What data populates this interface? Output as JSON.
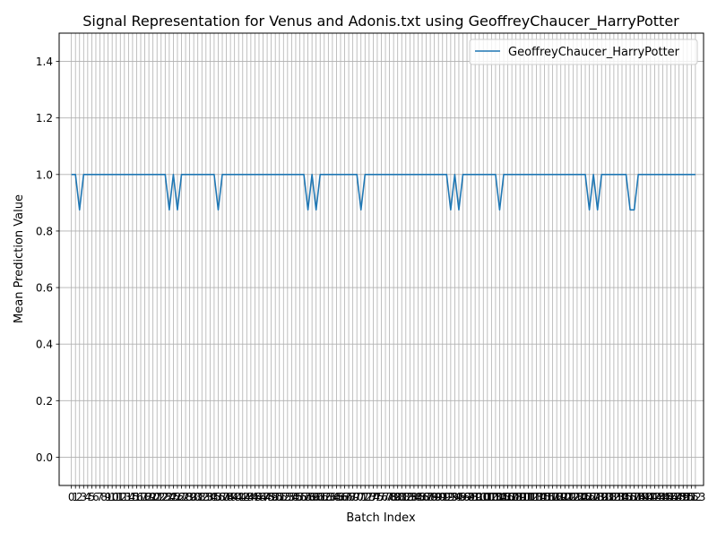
{
  "chart_data": {
    "type": "line",
    "title": "Signal Representation for Venus and Adonis.txt using GeoffreyChaucer_HarryPotter",
    "xlabel": "Batch Index",
    "ylabel": "Mean Prediction Value",
    "xlim": [
      -3,
      155
    ],
    "ylim": [
      -0.1,
      1.5
    ],
    "yticks": [
      0.0,
      0.2,
      0.4,
      0.6,
      0.8,
      1.0,
      1.2,
      1.4
    ],
    "ytick_labels": [
      "0.0",
      "0.2",
      "0.4",
      "0.6",
      "0.8",
      "1.0",
      "1.2",
      "1.4"
    ],
    "x_last": 153,
    "grid": true,
    "legend_position": "top-right",
    "series": [
      {
        "name": "GeoffreyChaucer_HarryPotter",
        "color": "#1f77b4",
        "x": [
          0,
          1,
          2,
          3,
          23,
          24,
          25,
          26,
          27,
          35,
          36,
          37,
          57,
          58,
          59,
          60,
          61,
          70,
          71,
          72,
          92,
          93,
          94,
          95,
          96,
          104,
          105,
          106,
          126,
          127,
          128,
          129,
          130,
          136,
          137,
          138,
          139,
          153
        ],
        "y": [
          1.0,
          1.0,
          0.875,
          1.0,
          1.0,
          0.875,
          1.0,
          0.875,
          1.0,
          1.0,
          0.875,
          1.0,
          1.0,
          0.875,
          1.0,
          0.875,
          1.0,
          1.0,
          0.875,
          1.0,
          1.0,
          0.875,
          1.0,
          0.875,
          1.0,
          1.0,
          0.875,
          1.0,
          1.0,
          0.875,
          1.0,
          0.875,
          1.0,
          1.0,
          0.875,
          0.875,
          1.0,
          1.0
        ]
      }
    ]
  }
}
